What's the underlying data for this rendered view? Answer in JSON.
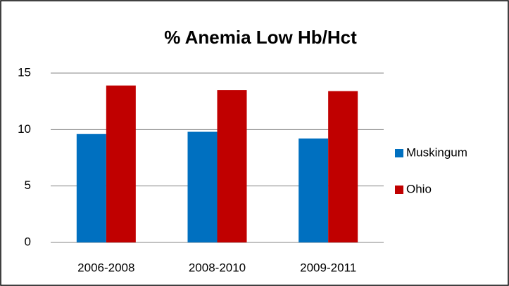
{
  "chart_data": {
    "type": "bar",
    "title": "% Anemia Low Hb/Hct",
    "categories": [
      "2006-2008",
      "2008-2010",
      "2009-2011"
    ],
    "series": [
      {
        "name": "Muskingum",
        "color": "#0070c0",
        "values": [
          9.6,
          9.8,
          9.2
        ]
      },
      {
        "name": "Ohio",
        "color": "#c00000",
        "values": [
          13.9,
          13.5,
          13.4
        ]
      }
    ],
    "ylim": [
      0,
      15
    ],
    "yticks": [
      0,
      5,
      10,
      15
    ],
    "grid": true,
    "legend": "right"
  }
}
